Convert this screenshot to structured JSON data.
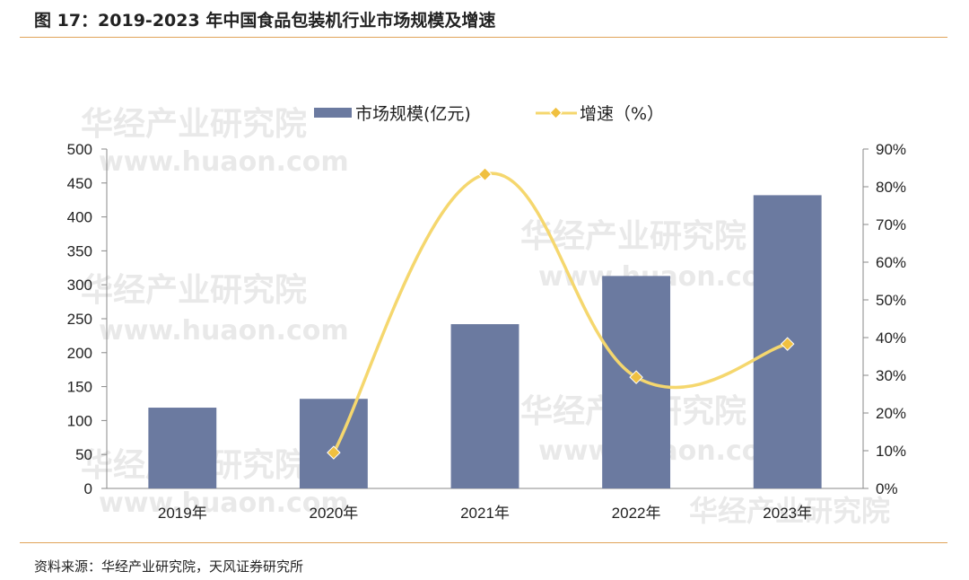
{
  "header": {
    "title": "图 17：2019-2023 年中国食品包装机行业市场规模及增速"
  },
  "footer": {
    "source": "资料来源：华经产业研究院，天风证券研究所"
  },
  "watermark": {
    "text": "华经产业研究院",
    "url": "www.huaon.com"
  },
  "colors": {
    "bar": "#6b7aa0",
    "line": "#f5d76e",
    "marker": "#f0c040",
    "rule": "#e0a35a"
  },
  "chart_data": {
    "type": "bar",
    "categories": [
      "2019年",
      "2020年",
      "2021年",
      "2022年",
      "2023年"
    ],
    "series": [
      {
        "name": "市场规模(亿元)",
        "type": "bar",
        "axis": "left",
        "values": [
          119,
          132,
          242,
          313,
          432
        ]
      },
      {
        "name": "增速（%）",
        "type": "line",
        "axis": "right",
        "values": [
          null,
          9.5,
          83.3,
          29.5,
          38.3
        ]
      }
    ],
    "left_axis": {
      "ylim": [
        0,
        500
      ],
      "ticks": [
        "0",
        "50",
        "100",
        "150",
        "200",
        "250",
        "300",
        "350",
        "400",
        "450",
        "500"
      ]
    },
    "right_axis": {
      "ylim": [
        0,
        90
      ],
      "ticks": [
        "0%",
        "10%",
        "20%",
        "30%",
        "40%",
        "50%",
        "60%",
        "70%",
        "80%",
        "90%"
      ]
    },
    "legend": {
      "labels": [
        "市场规模(亿元)",
        "增速（%）"
      ],
      "position": "top"
    },
    "grid": false
  }
}
